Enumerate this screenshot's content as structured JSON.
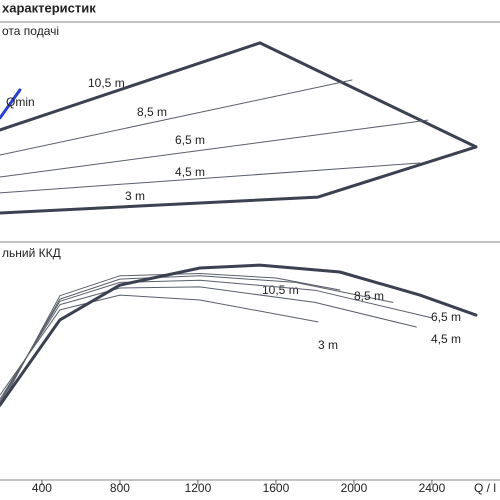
{
  "title": "характеристик",
  "chart_data": [
    {
      "type": "line",
      "title": "ота подачі",
      "xlim": [
        185,
        2749
      ],
      "ylim": [
        0,
        100
      ],
      "series": [
        {
          "name": "10,5 m",
          "color": "#3b4150",
          "width": 3,
          "x": [
            185,
            1518,
            2626
          ],
          "values": [
            50.5,
            90.4,
            42.7
          ]
        },
        {
          "name": "8,5 m",
          "color": "#5a5f6a",
          "width": 1,
          "x": [
            185,
            1990
          ],
          "values": [
            39.0,
            73.4
          ]
        },
        {
          "name": "6,5 m",
          "color": "#5a5f6a",
          "width": 1,
          "x": [
            185,
            2379
          ],
          "values": [
            28.9,
            55.0
          ]
        },
        {
          "name": "4,5 m",
          "color": "#5a5f6a",
          "width": 1,
          "x": [
            185,
            2338
          ],
          "values": [
            21.6,
            35.3
          ]
        },
        {
          "name": "3 m",
          "color": "#3b4150",
          "width": 3,
          "x": [
            185,
            1815,
            2626
          ],
          "values": [
            12.4,
            19.7,
            42.7
          ]
        },
        {
          "name": "Qmin",
          "color": "#2a3fd0",
          "width": 3,
          "x": [
            185,
            287
          ],
          "values": [
            56.0,
            68.8
          ]
        }
      ]
    },
    {
      "type": "line",
      "title": "льний ККД",
      "xlabel": "Q / l",
      "xlim": [
        185,
        2749
      ],
      "ylim": [
        0,
        100
      ],
      "xticks": [
        400,
        800,
        1200,
        1600,
        2000,
        2400
      ],
      "series": [
        {
          "name": "10,5 m",
          "color": "#5a5f6a",
          "width": 1,
          "x": [
            185,
            492,
            800,
            1210,
            1600,
            1928
          ],
          "values": [
            33.0,
            83.0,
            92.0,
            93.0,
            91.0,
            85.6
          ]
        },
        {
          "name": "8,5 m",
          "color": "#5a5f6a",
          "width": 1,
          "x": [
            185,
            492,
            800,
            1210,
            1700,
            2200
          ],
          "values": [
            34.5,
            81.5,
            90.5,
            92.0,
            89.0,
            80.0
          ]
        },
        {
          "name": "6,5 m",
          "color": "#5a5f6a",
          "width": 1,
          "x": [
            185,
            492,
            800,
            1210,
            1800,
            2400
          ],
          "values": [
            35.5,
            80.5,
            89.0,
            90.0,
            85.5,
            73.0
          ]
        },
        {
          "name": "4,5 m",
          "color": "#5a5f6a",
          "width": 1,
          "x": [
            185,
            492,
            800,
            1210,
            1800,
            2320
          ],
          "values": [
            36.5,
            79.0,
            86.5,
            87.0,
            80.0,
            68.9
          ]
        },
        {
          "name": "3 m",
          "color": "#5a5f6a",
          "width": 1,
          "x": [
            185,
            492,
            800,
            1210,
            1815
          ],
          "values": [
            38.3,
            76.6,
            83.3,
            81.1,
            71.2
          ]
        },
        {
          "name": "",
          "color": "#3b4150",
          "width": 3,
          "x": [
            185,
            492,
            800,
            1210,
            1518,
            1928,
            2338,
            2626
          ],
          "values": [
            33.8,
            72.1,
            87.8,
            95.5,
            96.8,
            93.7,
            83.3,
            74.3
          ]
        }
      ]
    }
  ]
}
